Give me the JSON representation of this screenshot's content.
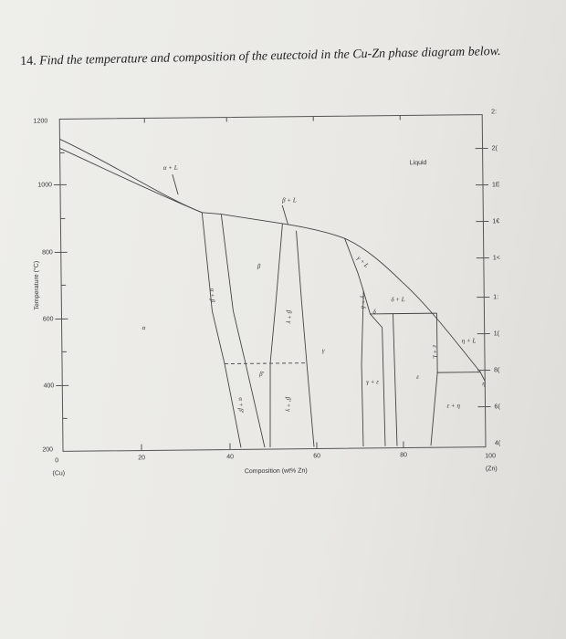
{
  "question": {
    "number": "14.",
    "text": "Find the temperature and composition of the eutectoid in the Cu-Zn phase diagram below."
  },
  "diagram": {
    "y_label": "Temperature (°C)",
    "x_label": "Composition (wt% Zn)",
    "y_ticks": [
      "1200",
      "1000",
      "800",
      "600",
      "400",
      "200"
    ],
    "x_ticks": [
      "0",
      "20",
      "40",
      "60",
      "80",
      "100"
    ],
    "x_left_element": "(Cu)",
    "x_right_element": "(Zn)",
    "right_ticks": [
      "2:",
      "2(",
      "1E",
      "1€",
      "1<",
      "1:",
      "1(",
      "8(",
      "6(",
      "4("
    ],
    "regions": [
      "Liquid",
      "α + L",
      "β + L",
      "α",
      "α + β",
      "β",
      "β + γ",
      "γ",
      "γ + L",
      "γ + δ",
      "δ",
      "δ + L",
      "ε + L",
      "η + L",
      "η",
      "ε",
      "γ + ε",
      "ε + η",
      "β′",
      "α + β′",
      "β′ + γ"
    ]
  }
}
